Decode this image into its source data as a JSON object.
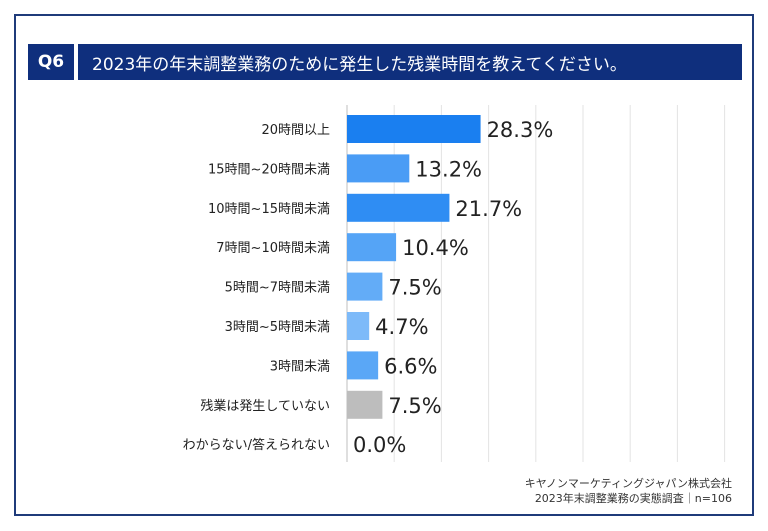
{
  "header": {
    "badge": "Q6",
    "title": "2023年の年末調整業務のために発生した残業時間を教えてください。"
  },
  "footer": {
    "line1": "キヤノンマーケティングジャパン株式会社",
    "line2": "2023年末調整業務の実態調査｜n=106"
  },
  "chart_data": {
    "type": "bar",
    "orientation": "horizontal",
    "title": "2023年の年末調整業務のために発生した残業時間を教えてください。",
    "categories": [
      "20時間以上",
      "15時間~20時間未満",
      "10時間~15時間未満",
      "7時間~10時間未満",
      "5時間~7時間未満",
      "3時間~5時間未満",
      "3時間未満",
      "残業は発生していない",
      "わからない/答えられない"
    ],
    "values": [
      28.3,
      13.2,
      21.7,
      10.4,
      7.5,
      4.7,
      6.6,
      7.5,
      0.0
    ],
    "labels": [
      "28.3%",
      "13.2%",
      "21.7%",
      "10.4%",
      "7.5%",
      "4.7%",
      "6.6%",
      "7.5%",
      "0.0%"
    ],
    "colors": [
      "#1a7ff0",
      "#4a9cf5",
      "#2f8df3",
      "#55a4f6",
      "#63acf7",
      "#7dbaf9",
      "#5aa7f6",
      "#bdbdbd",
      "#bdbdbd"
    ],
    "xlim": [
      0,
      100
    ],
    "grid": true,
    "unit": "%"
  }
}
